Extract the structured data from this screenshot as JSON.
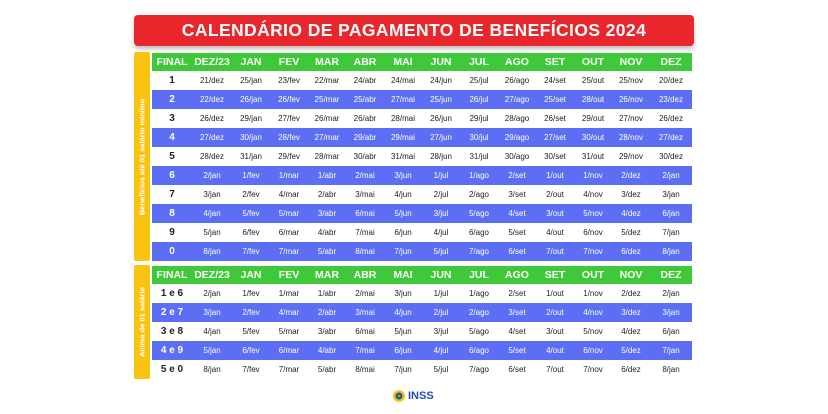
{
  "title": "CALENDÁRIO DE PAGAMENTO DE BENEFÍCIOS 2024",
  "sections": [
    {
      "side_label": "Benefícios até 01 salário mínimo",
      "header": [
        "FINAL",
        "DEZ/23",
        "JAN",
        "FEV",
        "MAR",
        "ABR",
        "MAI",
        "JUN",
        "JUL",
        "AGO",
        "SET",
        "OUT",
        "NOV",
        "DEZ"
      ],
      "rows": [
        [
          "1",
          "21/dez",
          "25/jan",
          "23/fev",
          "22/mar",
          "24/abr",
          "24/mai",
          "24/jun",
          "25/jul",
          "26/ago",
          "24/set",
          "25/out",
          "25/nov",
          "20/dez"
        ],
        [
          "2",
          "22/dez",
          "26/jan",
          "26/fev",
          "25/mar",
          "25/abr",
          "27/mai",
          "25/jun",
          "26/jul",
          "27/ago",
          "25/set",
          "28/out",
          "26/nov",
          "23/dez"
        ],
        [
          "3",
          "26/dez",
          "29/jan",
          "27/fev",
          "26/mar",
          "26/abr",
          "28/mai",
          "26/jun",
          "29/jul",
          "28/ago",
          "26/set",
          "29/out",
          "27/nov",
          "26/dez"
        ],
        [
          "4",
          "27/dez",
          "30/jan",
          "28/fev",
          "27/mar",
          "29/abr",
          "29/mai",
          "27/jun",
          "30/jul",
          "29/ago",
          "27/set",
          "30/out",
          "28/nov",
          "27/dez"
        ],
        [
          "5",
          "28/dez",
          "31/jan",
          "29/fev",
          "28/mar",
          "30/abr",
          "31/mai",
          "28/jun",
          "31/jul",
          "30/ago",
          "30/set",
          "31/out",
          "29/nov",
          "30/dez"
        ],
        [
          "6",
          "2/jan",
          "1/fev",
          "1/mar",
          "1/abr",
          "2/mai",
          "3/jun",
          "1/jul",
          "1/ago",
          "2/set",
          "1/out",
          "1/nov",
          "2/dez",
          "2/jan"
        ],
        [
          "7",
          "3/jan",
          "2/fev",
          "4/mar",
          "2/abr",
          "3/mai",
          "4/jun",
          "2/jul",
          "2/ago",
          "3/set",
          "2/out",
          "4/nov",
          "3/dez",
          "3/jan"
        ],
        [
          "8",
          "4/jan",
          "5/fev",
          "5/mar",
          "3/abr",
          "6/mai",
          "5/jun",
          "3/jul",
          "5/ago",
          "4/set",
          "3/out",
          "5/nov",
          "4/dez",
          "6/jan"
        ],
        [
          "9",
          "5/jan",
          "6/fev",
          "6/mar",
          "4/abr",
          "7/mai",
          "6/jun",
          "4/jul",
          "6/ago",
          "5/set",
          "4/out",
          "6/nov",
          "5/dez",
          "7/jan"
        ],
        [
          "0",
          "8/jan",
          "7/fev",
          "7/mar",
          "5/abr",
          "8/mai",
          "7/jun",
          "5/jul",
          "7/ago",
          "6/set",
          "7/out",
          "7/nov",
          "6/dez",
          "8/jan"
        ]
      ]
    },
    {
      "side_label": "Acima de 01 salário",
      "header": [
        "FINAL",
        "DEZ/23",
        "JAN",
        "FEV",
        "MAR",
        "ABR",
        "MAI",
        "JUN",
        "JUL",
        "AGO",
        "SET",
        "OUT",
        "NOV",
        "DEZ"
      ],
      "rows": [
        [
          "1 e 6",
          "2/jan",
          "1/fev",
          "1/mar",
          "1/abr",
          "2/mai",
          "3/jun",
          "1/jul",
          "1/ago",
          "2/set",
          "1/out",
          "1/nov",
          "2/dez",
          "2/jan"
        ],
        [
          "2 e 7",
          "3/jan",
          "2/fev",
          "4/mar",
          "2/abr",
          "3/mai",
          "4/jun",
          "2/jul",
          "2/ago",
          "3/set",
          "2/out",
          "4/nov",
          "3/dez",
          "3/jan"
        ],
        [
          "3 e 8",
          "4/jan",
          "5/fev",
          "5/mar",
          "3/abr",
          "6/mai",
          "5/jun",
          "3/jul",
          "5/ago",
          "4/set",
          "3/out",
          "5/nov",
          "4/dez",
          "6/jan"
        ],
        [
          "4 e 9",
          "5/jan",
          "6/fev",
          "6/mar",
          "4/abr",
          "7/mai",
          "6/jun",
          "4/jul",
          "6/ago",
          "5/set",
          "4/out",
          "6/nov",
          "5/dez",
          "7/jan"
        ],
        [
          "5 e 0",
          "8/jan",
          "7/fev",
          "7/mar",
          "5/abr",
          "8/mai",
          "7/jun",
          "5/jul",
          "7/ago",
          "6/set",
          "7/out",
          "7/nov",
          "6/dez",
          "8/jan"
        ]
      ]
    }
  ],
  "logo": {
    "text": "INSS",
    "icon": "inss-logo-icon"
  },
  "colors": {
    "title": "#e8262b",
    "header": "#3fc93a",
    "blue_row": "#5c6ef3",
    "side": "#f9c40f"
  }
}
